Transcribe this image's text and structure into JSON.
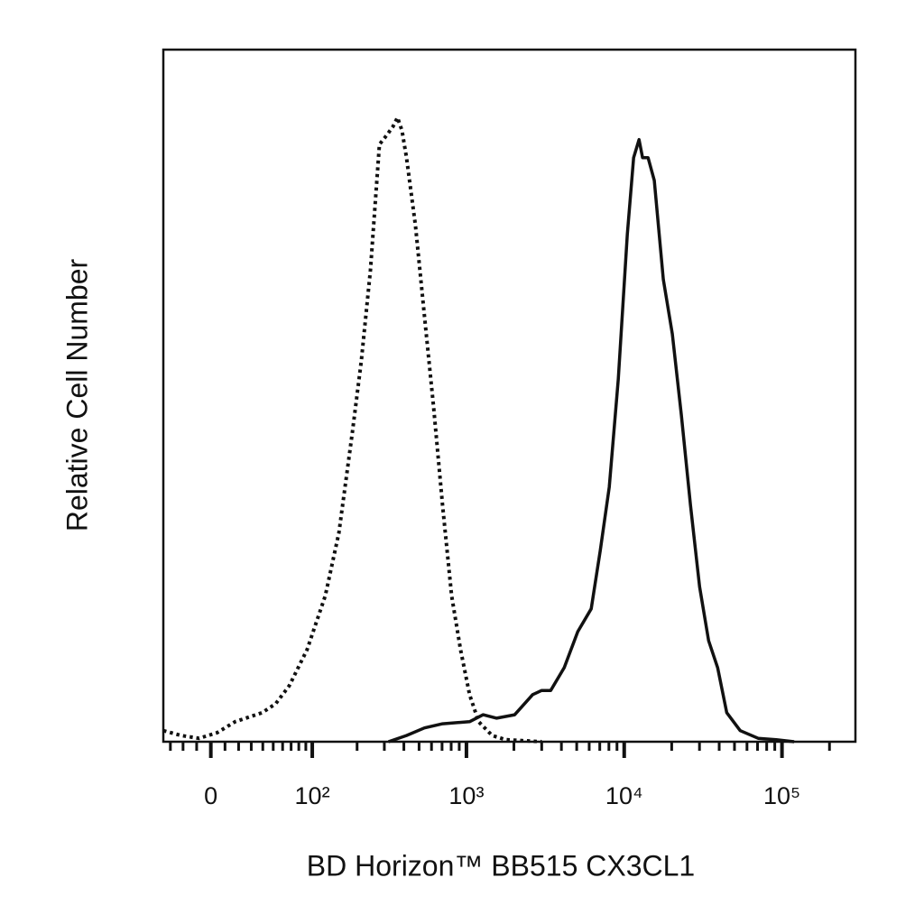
{
  "chart_data": {
    "type": "line",
    "xlabel": "BD Horizon™ BB515 CX3CL1",
    "ylabel": "Relative Cell Number",
    "xscale": "biexponential",
    "xlim": [
      -36,
      292000
    ],
    "ylim": [
      0,
      100
    ],
    "xticks": [
      0,
      {
        "value": 100,
        "label": "10²"
      },
      {
        "value": 1000,
        "label": "10³"
      },
      {
        "value": 10000,
        "label": "10⁴"
      },
      {
        "value": 100000,
        "label": "10⁵"
      }
    ],
    "xminor_ticks": [
      -30,
      -20,
      -10,
      10,
      20,
      30,
      40,
      50,
      60,
      70,
      80,
      90,
      200,
      300,
      400,
      500,
      600,
      700,
      800,
      900,
      2000,
      3000,
      4000,
      5000,
      6000,
      7000,
      8000,
      9000,
      20000,
      30000,
      40000,
      50000,
      60000,
      70000,
      80000,
      90000,
      200000
    ],
    "series": [
      {
        "color": "#111111",
        "style": "dotted",
        "x": [
          -36,
          -21.5,
          -8.3,
          4.4,
          17.4,
          39.5,
          52.6,
          67.8,
          91.9,
          123,
          152,
          186,
          213,
          244,
          279,
          310,
          341,
          364,
          389,
          416,
          474,
          541,
          618,
          706,
          805,
          918,
          1047,
          1195,
          1455,
          1772,
          3000
        ],
        "values": [
          1.6,
          0.9,
          0.5,
          1.3,
          2.9,
          4.2,
          5.5,
          8.1,
          13.3,
          21.1,
          30.2,
          44.6,
          55.0,
          68.1,
          86.3,
          87.6,
          88.9,
          90.2,
          88.3,
          84.4,
          74.6,
          61.5,
          48.4,
          34.1,
          21.1,
          13.3,
          6.8,
          2.9,
          0.9,
          0.3,
          0
        ]
      },
      {
        "color": "#111111",
        "style": "solid",
        "x": [
          319,
          416,
          541,
          706,
          1047,
          1276,
          1555,
          2022,
          2628,
          3000,
          3420,
          4167,
          5078,
          6183,
          7052,
          8040,
          9170,
          10460,
          11470,
          12410,
          13080,
          14160,
          15520,
          17690,
          20180,
          23030,
          26320,
          30040,
          34260,
          39100,
          44630,
          54340,
          70660,
          91880,
          119500
        ],
        "values": [
          0,
          0.9,
          2.0,
          2.6,
          2.9,
          3.9,
          3.4,
          3.9,
          6.8,
          7.4,
          7.4,
          10.7,
          15.9,
          19.2,
          27.6,
          36.8,
          52.4,
          73.3,
          84.4,
          87.0,
          84.4,
          84.4,
          81.1,
          66.8,
          58.9,
          47.2,
          34.2,
          22.4,
          14.6,
          10.7,
          4.2,
          1.6,
          0.5,
          0.3,
          0
        ]
      }
    ]
  }
}
